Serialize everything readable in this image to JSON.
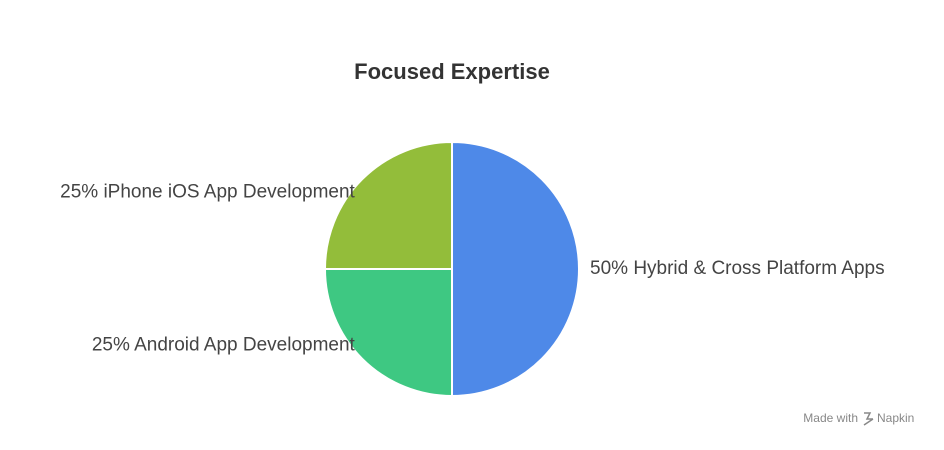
{
  "chart_data": {
    "type": "pie",
    "title": "Focused Expertise",
    "categories": [
      "Hybrid & Cross Platform Apps",
      "Android App Development",
      "iPhone iOS App Development"
    ],
    "values": [
      50,
      25,
      25
    ],
    "value_labels": [
      "50%",
      "25%",
      "25%"
    ],
    "colors": [
      "#4e89e8",
      "#3ec882",
      "#93bd3a"
    ]
  },
  "watermark": {
    "prefix": "Made with",
    "brand": "Napkin"
  }
}
